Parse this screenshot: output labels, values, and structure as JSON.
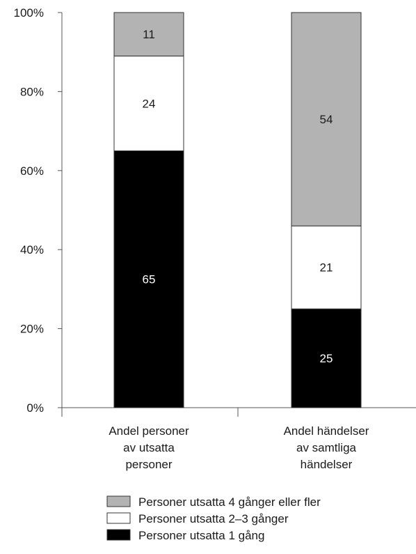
{
  "chart_data": {
    "type": "bar",
    "stacked": true,
    "title": "",
    "xlabel": "",
    "ylabel": "",
    "ylim": [
      0,
      100
    ],
    "yticks": [
      "0%",
      "20%",
      "40%",
      "60%",
      "80%",
      "100%"
    ],
    "grid": false,
    "legend_position": "bottom",
    "categories": [
      [
        "Andel personer",
        "av utsatta",
        "personer"
      ],
      [
        "Andel händelser",
        "av samtliga",
        "händelser"
      ]
    ],
    "series": [
      {
        "name": "Personer utsatta 1 gång",
        "color": "#000000",
        "text_color": "#ffffff",
        "values": [
          65,
          25
        ]
      },
      {
        "name": "Personer utsatta 2–3 gånger",
        "color": "#ffffff",
        "text_color": "#1a1a1a",
        "values": [
          24,
          21
        ]
      },
      {
        "name": "Personer utsatta 4 gånger eller fler",
        "color": "#b3b3b3",
        "text_color": "#1a1a1a",
        "values": [
          11,
          54
        ]
      }
    ],
    "legend_order": [
      2,
      1,
      0
    ]
  }
}
